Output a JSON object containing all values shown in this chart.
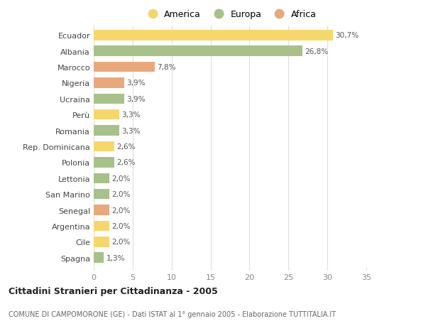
{
  "countries": [
    "Ecuador",
    "Albania",
    "Marocco",
    "Nigeria",
    "Ucraina",
    "Perù",
    "Romania",
    "Rep. Dominicana",
    "Polonia",
    "Lettonia",
    "San Marino",
    "Senegal",
    "Argentina",
    "Cile",
    "Spagna"
  ],
  "values": [
    30.7,
    26.8,
    7.8,
    3.9,
    3.9,
    3.3,
    3.3,
    2.6,
    2.6,
    2.0,
    2.0,
    2.0,
    2.0,
    2.0,
    1.3
  ],
  "labels": [
    "30,7%",
    "26,8%",
    "7,8%",
    "3,9%",
    "3,9%",
    "3,3%",
    "3,3%",
    "2,6%",
    "2,6%",
    "2,0%",
    "2,0%",
    "2,0%",
    "2,0%",
    "2,0%",
    "1,3%"
  ],
  "bar_colors": [
    "#F5D76E",
    "#A8C08A",
    "#E8A87C",
    "#E8A87C",
    "#A8C08A",
    "#F5D76E",
    "#A8C08A",
    "#F5D76E",
    "#A8C08A",
    "#A8C08A",
    "#A8C08A",
    "#E8A87C",
    "#F5D76E",
    "#F5D76E",
    "#A8C08A"
  ],
  "title": "Cittadini Stranieri per Cittadinanza - 2005",
  "subtitle": "COMUNE DI CAMPOMORONE (GE) - Dati ISTAT al 1° gennaio 2005 - Elaborazione TUTTITALIA.IT",
  "xlim": [
    0,
    35
  ],
  "xticks": [
    0,
    5,
    10,
    15,
    20,
    25,
    30,
    35
  ],
  "background_color": "#FFFFFF",
  "grid_color": "#DDDDDD",
  "legend_labels": [
    "America",
    "Europa",
    "Africa"
  ],
  "legend_colors": [
    "#F5D76E",
    "#A8C08A",
    "#E8A87C"
  ]
}
